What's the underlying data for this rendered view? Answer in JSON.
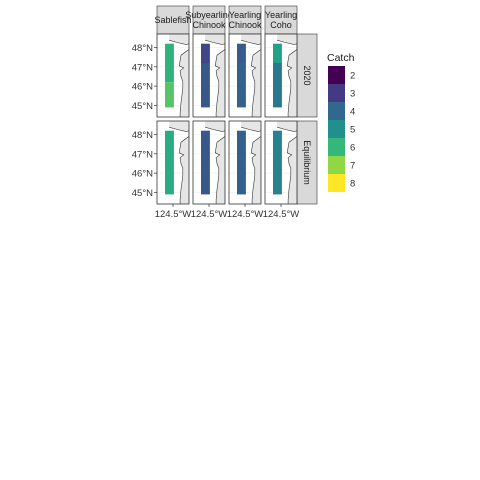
{
  "chart_data": {
    "type": "heatmap",
    "panel_columns": [
      "Sablefish",
      "Subyearling Chinook",
      "Yearling Chinook",
      "Yearling Coho"
    ],
    "panel_rows": [
      "2020",
      "Equilibrium"
    ],
    "y_tick_labels": [
      "45°N",
      "46°N",
      "47°N",
      "48°N"
    ],
    "y_ticks": [
      45,
      46,
      47,
      48
    ],
    "x_tick_labels": [
      "124.5°W",
      "124.5°W",
      "124.5°W",
      "124.5°W"
    ],
    "x_ticks": [
      -124.5
    ],
    "xlim": [
      -125.4,
      -123.6
    ],
    "ylim": [
      44.4,
      48.7
    ],
    "legend": {
      "title": "Catch",
      "position": "right",
      "breaks": [
        2,
        3,
        4,
        5,
        6,
        7,
        8
      ],
      "colors": [
        "#440154",
        "#443a83",
        "#31688e",
        "#21908d",
        "#35b779",
        "#8fd744",
        "#fde725"
      ]
    },
    "color_range": [
      1.5,
      8.5
    ],
    "panels": [
      {
        "row": "2020",
        "column": "Sablefish",
        "bands": [
          {
            "lat": [
              46.2,
              48.2
            ],
            "catch": 6.0
          },
          {
            "lat": [
              44.9,
              46.2
            ],
            "catch": 6.6
          }
        ]
      },
      {
        "row": "2020",
        "column": "Subyearling Chinook",
        "bands": [
          {
            "lat": [
              47.2,
              48.2
            ],
            "catch": 3.0
          },
          {
            "lat": [
              44.9,
              47.2
            ],
            "catch": 3.4
          }
        ]
      },
      {
        "row": "2020",
        "column": "Yearling Chinook",
        "bands": [
          {
            "lat": [
              47.2,
              48.2
            ],
            "catch": 3.5
          },
          {
            "lat": [
              44.9,
              47.2
            ],
            "catch": 3.7
          }
        ]
      },
      {
        "row": "2020",
        "column": "Yearling Coho",
        "bands": [
          {
            "lat": [
              47.2,
              48.2
            ],
            "catch": 5.5
          },
          {
            "lat": [
              44.9,
              47.2
            ],
            "catch": 4.3
          }
        ]
      },
      {
        "row": "Equilibrium",
        "column": "Sablefish",
        "bands": [
          {
            "lat": [
              44.9,
              48.2
            ],
            "catch": 5.8
          }
        ]
      },
      {
        "row": "Equilibrium",
        "column": "Subyearling Chinook",
        "bands": [
          {
            "lat": [
              44.9,
              48.2
            ],
            "catch": 3.4
          }
        ]
      },
      {
        "row": "Equilibrium",
        "column": "Yearling Chinook",
        "bands": [
          {
            "lat": [
              44.9,
              48.2
            ],
            "catch": 3.6
          }
        ]
      },
      {
        "row": "Equilibrium",
        "column": "Yearling Coho",
        "bands": [
          {
            "lat": [
              44.9,
              48.2
            ],
            "catch": 4.6
          }
        ]
      }
    ]
  }
}
